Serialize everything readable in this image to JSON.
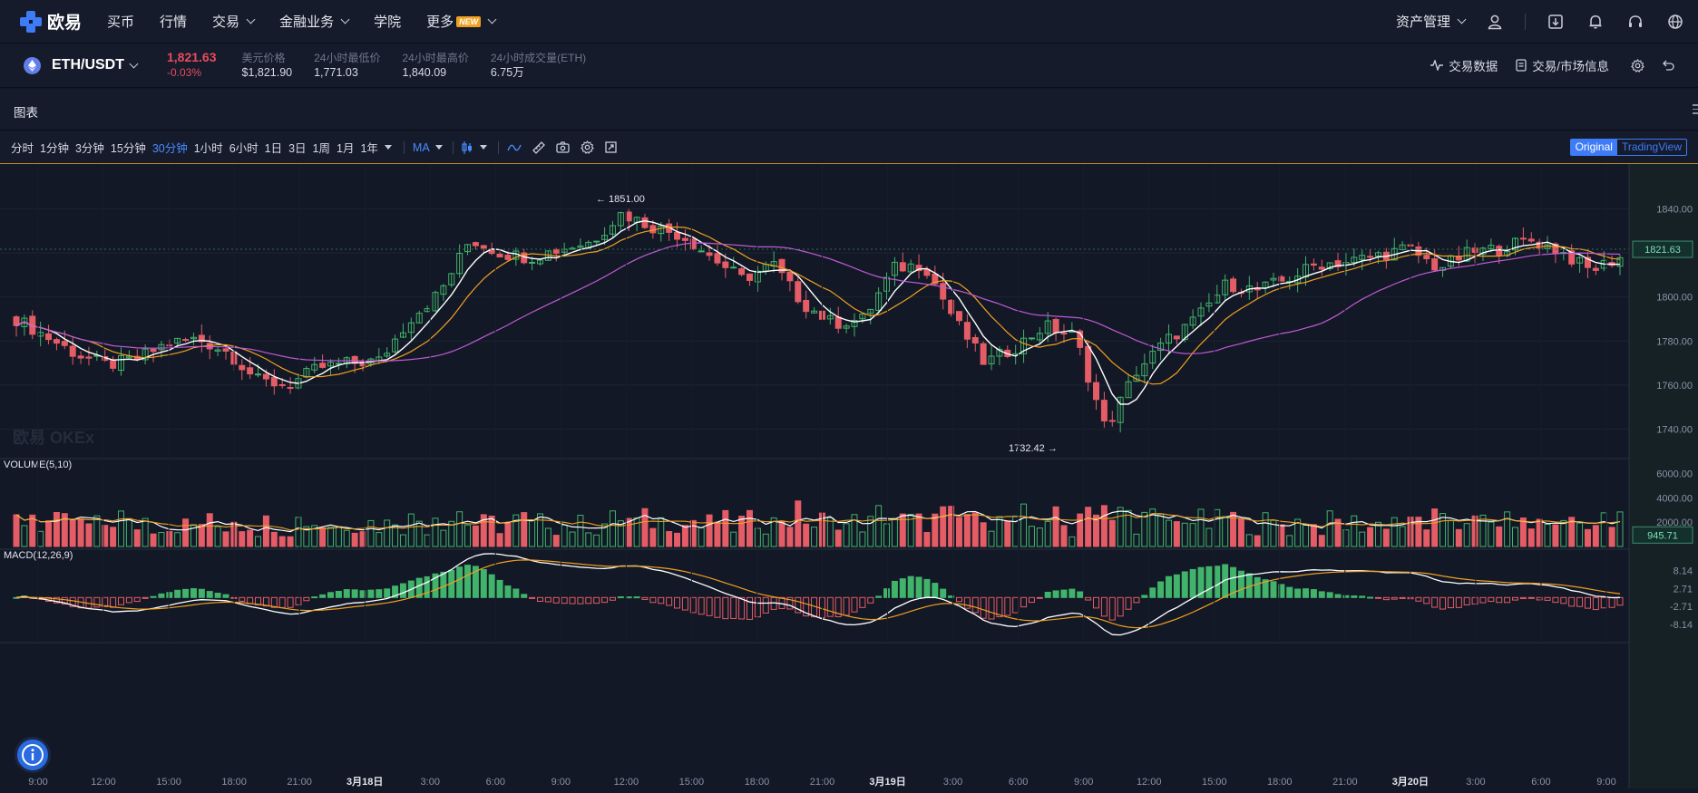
{
  "nav": {
    "logo_text": "欧易",
    "items": [
      {
        "label": "买币",
        "chevron": false
      },
      {
        "label": "行情",
        "chevron": false
      },
      {
        "label": "交易",
        "chevron": true
      },
      {
        "label": "金融业务",
        "chevron": true
      },
      {
        "label": "学院",
        "chevron": false
      },
      {
        "label": "更多",
        "chevron": true,
        "badge": "NEW"
      }
    ],
    "asset_label": "资产管理",
    "icons": [
      "user-icon",
      "download-icon",
      "bell-icon",
      "headset-icon",
      "globe-icon"
    ]
  },
  "ticker": {
    "pair": "ETH/USDT",
    "last_price": "1,821.63",
    "change_pct": "-0.03%",
    "stats": [
      {
        "label": "美元价格",
        "value": "$1,821.90"
      },
      {
        "label": "24小时最低价",
        "value": "1,771.03"
      },
      {
        "label": "24小时最高价",
        "value": "1,840.09"
      },
      {
        "label": "24小时成交量(ETH)",
        "value": "6.75万"
      }
    ],
    "links": [
      "交易数据",
      "交易/市场信息"
    ]
  },
  "chart_panel": {
    "title": "图表",
    "timeframes": [
      "分时",
      "1分钟",
      "3分钟",
      "15分钟",
      "30分钟",
      "1小时",
      "6小时",
      "1日",
      "3日",
      "1周",
      "1月",
      "1年"
    ],
    "active_timeframe": "30分钟",
    "indicator": "MA",
    "view_original": "Original",
    "view_tradingview": "TradingView",
    "watermark": "欧易 OKEx"
  },
  "chart_data": {
    "type": "candlestick",
    "main": {
      "ylim": [
        1730,
        1857
      ],
      "yticks": [
        "1840.00",
        "1820.00",
        "1800.00",
        "1780.00",
        "1760.00",
        "1740.00"
      ],
      "current_price_label": "1821.63",
      "high_marker": "← 1851.00",
      "low_marker": "1732.42 →"
    },
    "volume": {
      "label": "VOLUME(5,10)",
      "ylim": [
        0,
        7000
      ],
      "yticks": [
        "6000.00",
        "4000.00",
        "2000.00"
      ],
      "current_label": "945.71"
    },
    "macd": {
      "label": "MACD(12,26,9)",
      "ylim": [
        -12,
        13
      ],
      "yticks": [
        "8.14",
        "2.71",
        "-2.71",
        "-8.14"
      ]
    },
    "x_labels": [
      {
        "label": "9:00",
        "bold": false
      },
      {
        "label": "12:00",
        "bold": false
      },
      {
        "label": "15:00",
        "bold": false
      },
      {
        "label": "18:00",
        "bold": false
      },
      {
        "label": "21:00",
        "bold": false
      },
      {
        "label": "3月18日",
        "bold": true
      },
      {
        "label": "3:00",
        "bold": false
      },
      {
        "label": "6:00",
        "bold": false
      },
      {
        "label": "9:00",
        "bold": false
      },
      {
        "label": "12:00",
        "bold": false
      },
      {
        "label": "15:00",
        "bold": false
      },
      {
        "label": "18:00",
        "bold": false
      },
      {
        "label": "21:00",
        "bold": false
      },
      {
        "label": "3月19日",
        "bold": true
      },
      {
        "label": "3:00",
        "bold": false
      },
      {
        "label": "6:00",
        "bold": false
      },
      {
        "label": "9:00",
        "bold": false
      },
      {
        "label": "12:00",
        "bold": false
      },
      {
        "label": "15:00",
        "bold": false
      },
      {
        "label": "18:00",
        "bold": false
      },
      {
        "label": "21:00",
        "bold": false
      },
      {
        "label": "3月20日",
        "bold": true
      },
      {
        "label": "3:00",
        "bold": false
      },
      {
        "label": "6:00",
        "bold": false
      },
      {
        "label": "9:00",
        "bold": false
      }
    ],
    "close_anchors": [
      1790,
      1782,
      1774,
      1769,
      1772,
      1779,
      1781,
      1775,
      1762,
      1760,
      1768,
      1770,
      1771,
      1790,
      1802,
      1826,
      1820,
      1818,
      1822,
      1825,
      1838,
      1832,
      1828,
      1818,
      1808,
      1815,
      1797,
      1788,
      1790,
      1813,
      1815,
      1790,
      1770,
      1777,
      1787,
      1782,
      1740,
      1766,
      1780,
      1790,
      1806,
      1803,
      1808,
      1815,
      1816,
      1819,
      1822,
      1813,
      1820,
      1822,
      1826,
      1821,
      1812,
      1818
    ]
  },
  "colors": {
    "up": "#41b36a",
    "down": "#e45c65",
    "ma_fast": "#ffffff",
    "ma_mid": "#f0a020",
    "ma_slow": "#c15ad6",
    "accent": "#3d7bf7"
  }
}
